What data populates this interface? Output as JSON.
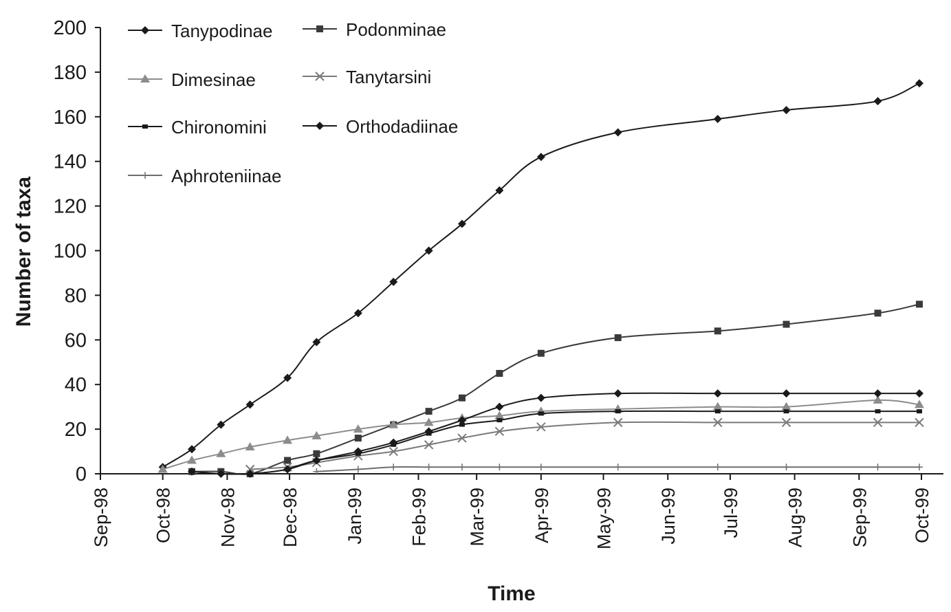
{
  "chart_data": {
    "type": "line",
    "xlabel": "Time",
    "ylabel": "Number of taxa",
    "ylim": [
      0,
      200
    ],
    "yticks": [
      0,
      20,
      40,
      60,
      80,
      100,
      120,
      140,
      160,
      180,
      200
    ],
    "xlim": [
      "1998-09-01",
      "1999-10-01"
    ],
    "xticks": [
      "Sep-98",
      "Oct-98",
      "Nov-98",
      "Dec-98",
      "Jan-99",
      "Feb-99",
      "Mar-99",
      "Apr-99",
      "May-99",
      "Jun-99",
      "Jul-99",
      "Aug-99",
      "Sep-99",
      "Oct-99"
    ],
    "grid": false,
    "legend_position": "top-left",
    "series": [
      {
        "name": "Tanypodinae",
        "marker": "diamond",
        "color": "#1a1a1a",
        "points": [
          [
            "1998-10-01",
            3
          ],
          [
            "1998-10-15",
            11
          ],
          [
            "1998-10-29",
            22
          ],
          [
            "1998-11-12",
            31
          ],
          [
            "1998-11-30",
            43
          ],
          [
            "1998-12-14",
            59
          ],
          [
            "1999-01-03",
            72
          ],
          [
            "1999-01-20",
            86
          ],
          [
            "1999-02-06",
            100
          ],
          [
            "1999-02-22",
            112
          ],
          [
            "1999-03-12",
            127
          ],
          [
            "1999-04-01",
            142
          ],
          [
            "1999-05-08",
            153
          ],
          [
            "1999-06-25",
            159
          ],
          [
            "1999-07-28",
            163
          ],
          [
            "1999-09-10",
            167
          ],
          [
            "1999-09-30",
            175
          ]
        ]
      },
      {
        "name": "Podonminae",
        "marker": "square",
        "color": "#3a3a3a",
        "points": [
          [
            "1998-10-15",
            1
          ],
          [
            "1998-10-29",
            1
          ],
          [
            "1998-11-12",
            0
          ],
          [
            "1998-11-30",
            6
          ],
          [
            "1998-12-14",
            9
          ],
          [
            "1999-01-03",
            16
          ],
          [
            "1999-01-20",
            22
          ],
          [
            "1999-02-06",
            28
          ],
          [
            "1999-02-22",
            34
          ],
          [
            "1999-03-12",
            45
          ],
          [
            "1999-04-01",
            54
          ],
          [
            "1999-05-08",
            61
          ],
          [
            "1999-06-25",
            64
          ],
          [
            "1999-07-28",
            67
          ],
          [
            "1999-09-10",
            72
          ],
          [
            "1999-09-30",
            76
          ]
        ]
      },
      {
        "name": "Dimesinae",
        "marker": "triangle",
        "color": "#8c8c8c",
        "points": [
          [
            "1998-10-01",
            2
          ],
          [
            "1998-10-15",
            6
          ],
          [
            "1998-10-29",
            9
          ],
          [
            "1998-11-12",
            12
          ],
          [
            "1998-11-30",
            15
          ],
          [
            "1998-12-14",
            17
          ],
          [
            "1999-01-03",
            20
          ],
          [
            "1999-01-20",
            22
          ],
          [
            "1999-02-06",
            23
          ],
          [
            "1999-02-22",
            25
          ],
          [
            "1999-03-12",
            26
          ],
          [
            "1999-04-01",
            28
          ],
          [
            "1999-05-08",
            29
          ],
          [
            "1999-06-25",
            30
          ],
          [
            "1999-07-28",
            30
          ],
          [
            "1999-09-10",
            33
          ],
          [
            "1999-09-30",
            31
          ]
        ]
      },
      {
        "name": "Tanytarsini",
        "marker": "x",
        "color": "#7a7a7a",
        "points": [
          [
            "1998-11-12",
            2
          ],
          [
            "1998-11-30",
            3
          ],
          [
            "1998-12-14",
            5
          ],
          [
            "1999-01-03",
            8
          ],
          [
            "1999-01-20",
            10
          ],
          [
            "1999-02-06",
            13
          ],
          [
            "1999-02-22",
            16
          ],
          [
            "1999-03-12",
            19
          ],
          [
            "1999-04-01",
            21
          ],
          [
            "1999-05-08",
            23
          ],
          [
            "1999-06-25",
            23
          ],
          [
            "1999-07-28",
            23
          ],
          [
            "1999-09-10",
            23
          ],
          [
            "1999-09-30",
            23
          ]
        ]
      },
      {
        "name": "Chironomini",
        "marker": "dash",
        "color": "#1a1a1a",
        "points": [
          [
            "1998-11-30",
            2
          ],
          [
            "1998-12-14",
            6
          ],
          [
            "1999-01-03",
            9
          ],
          [
            "1999-01-20",
            13
          ],
          [
            "1999-02-06",
            18
          ],
          [
            "1999-02-22",
            22
          ],
          [
            "1999-03-12",
            24
          ],
          [
            "1999-04-01",
            27
          ],
          [
            "1999-05-08",
            28
          ],
          [
            "1999-06-25",
            28
          ],
          [
            "1999-07-28",
            28
          ],
          [
            "1999-09-10",
            28
          ],
          [
            "1999-09-30",
            28
          ]
        ]
      },
      {
        "name": "Orthodadiinae",
        "marker": "diamond",
        "color": "#1a1a1a",
        "points": [
          [
            "1998-10-15",
            1
          ],
          [
            "1998-10-29",
            0
          ],
          [
            "1998-11-12",
            0
          ],
          [
            "1998-11-30",
            2
          ],
          [
            "1998-12-14",
            6
          ],
          [
            "1999-01-03",
            10
          ],
          [
            "1999-01-20",
            14
          ],
          [
            "1999-02-06",
            19
          ],
          [
            "1999-02-22",
            24
          ],
          [
            "1999-03-12",
            30
          ],
          [
            "1999-04-01",
            34
          ],
          [
            "1999-05-08",
            36
          ],
          [
            "1999-06-25",
            36
          ],
          [
            "1999-07-28",
            36
          ],
          [
            "1999-09-10",
            36
          ],
          [
            "1999-09-30",
            36
          ]
        ]
      },
      {
        "name": "Aphroteniinae",
        "marker": "plus",
        "color": "#6e6e6e",
        "points": [
          [
            "1998-12-14",
            1
          ],
          [
            "1999-01-03",
            2
          ],
          [
            "1999-01-20",
            3
          ],
          [
            "1999-02-06",
            3
          ],
          [
            "1999-02-22",
            3
          ],
          [
            "1999-03-12",
            3
          ],
          [
            "1999-04-01",
            3
          ],
          [
            "1999-05-08",
            3
          ],
          [
            "1999-06-25",
            3
          ],
          [
            "1999-07-28",
            3
          ],
          [
            "1999-09-10",
            3
          ],
          [
            "1999-09-30",
            3
          ]
        ]
      }
    ]
  }
}
